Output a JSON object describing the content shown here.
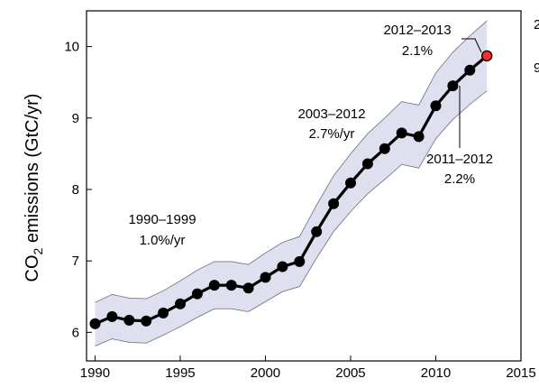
{
  "chart_data": {
    "type": "line",
    "xlim": [
      1989.5,
      2015
    ],
    "ylim": [
      5.6,
      10.5
    ],
    "ylabel": {
      "pre": "CO",
      "sub": "2",
      "post": " emissions (GtC/yr)"
    },
    "xticks": [
      1990,
      1995,
      2000,
      2005,
      2010,
      2015
    ],
    "yticks": [
      6,
      7,
      8,
      9,
      10
    ],
    "grid": false,
    "series": [
      {
        "x": [
          1990,
          1991,
          1992,
          1993,
          1994,
          1995,
          1996,
          1997,
          1998,
          1999,
          2000,
          2001,
          2002,
          2003,
          2004,
          2005,
          2006,
          2007,
          2008,
          2009,
          2010,
          2011,
          2012,
          2013
        ],
        "y": [
          6.12,
          6.22,
          6.17,
          6.16,
          6.27,
          6.4,
          6.54,
          6.66,
          6.66,
          6.62,
          6.77,
          6.92,
          6.99,
          7.41,
          7.8,
          8.09,
          8.36,
          8.57,
          8.79,
          8.74,
          9.17,
          9.45,
          9.67,
          9.87
        ],
        "highlight_last": true,
        "highlight_color": "#ff2a2a",
        "line_color": "#000000",
        "band_color": "#dfe0ef",
        "band_edge_color": "#7a7a8a",
        "band_upper": [
          6.42,
          6.53,
          6.48,
          6.47,
          6.58,
          6.72,
          6.87,
          6.99,
          6.99,
          6.95,
          7.11,
          7.26,
          7.34,
          7.78,
          8.19,
          8.5,
          8.78,
          9.0,
          9.23,
          9.18,
          9.63,
          9.92,
          10.15,
          10.36
        ],
        "band_lower": [
          5.81,
          5.91,
          5.86,
          5.85,
          5.96,
          6.08,
          6.21,
          6.33,
          6.33,
          6.29,
          6.43,
          6.57,
          6.64,
          7.04,
          7.41,
          7.69,
          7.94,
          8.14,
          8.35,
          8.3,
          8.71,
          8.98,
          9.19,
          9.38
        ]
      }
    ],
    "annotations": [
      {
        "lines": [
          "1990–1999",
          "1.0%/yr"
        ]
      },
      {
        "lines": [
          "2003–2012",
          "2.7%/yr"
        ]
      },
      {
        "lines": [
          "2012–2013",
          "2.1%"
        ]
      },
      {
        "lines": [
          "2011–2012",
          "2.2%"
        ]
      }
    ],
    "cut_text": {
      "right_top": "2",
      "right_mid": "9"
    }
  }
}
